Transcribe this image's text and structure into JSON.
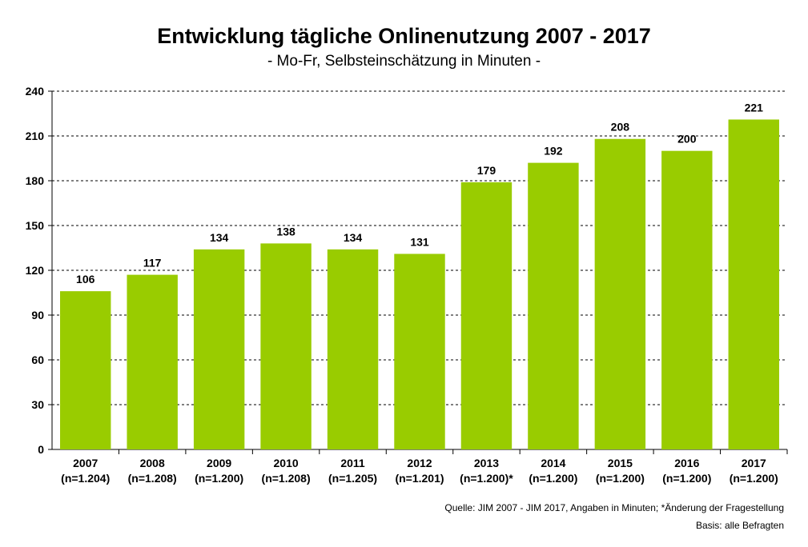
{
  "chart_data": {
    "type": "bar",
    "title": "Entwicklung tägliche Onlinenutzung 2007 - 2017",
    "subtitle": "- Mo-Fr, Selbsteinschätzung in Minuten -",
    "categories": [
      "2007",
      "2008",
      "2009",
      "2010",
      "2011",
      "2012",
      "2013",
      "2014",
      "2015",
      "2016",
      "2017"
    ],
    "category_notes": [
      "(n=1.204)",
      "(n=1.208)",
      "(n=1.200)",
      "(n=1.208)",
      "(n=1.205)",
      "(n=1.201)",
      "(n=1.200)*",
      "(n=1.200)",
      "(n=1.200)",
      "(n=1.200)",
      "(n=1.200)"
    ],
    "values": [
      106,
      117,
      134,
      138,
      134,
      131,
      179,
      192,
      208,
      200,
      221
    ],
    "ylim": [
      0,
      240
    ],
    "yticks": [
      0,
      30,
      60,
      90,
      120,
      150,
      180,
      210,
      240
    ],
    "grid": true,
    "bar_color": "#99cc00",
    "xlabel": "",
    "ylabel": ""
  },
  "footer": {
    "source": "Quelle: JIM 2007 - JIM 2017, Angaben in Minuten; *Änderung der Fragestellung",
    "basis": "Basis: alle Befragten"
  }
}
